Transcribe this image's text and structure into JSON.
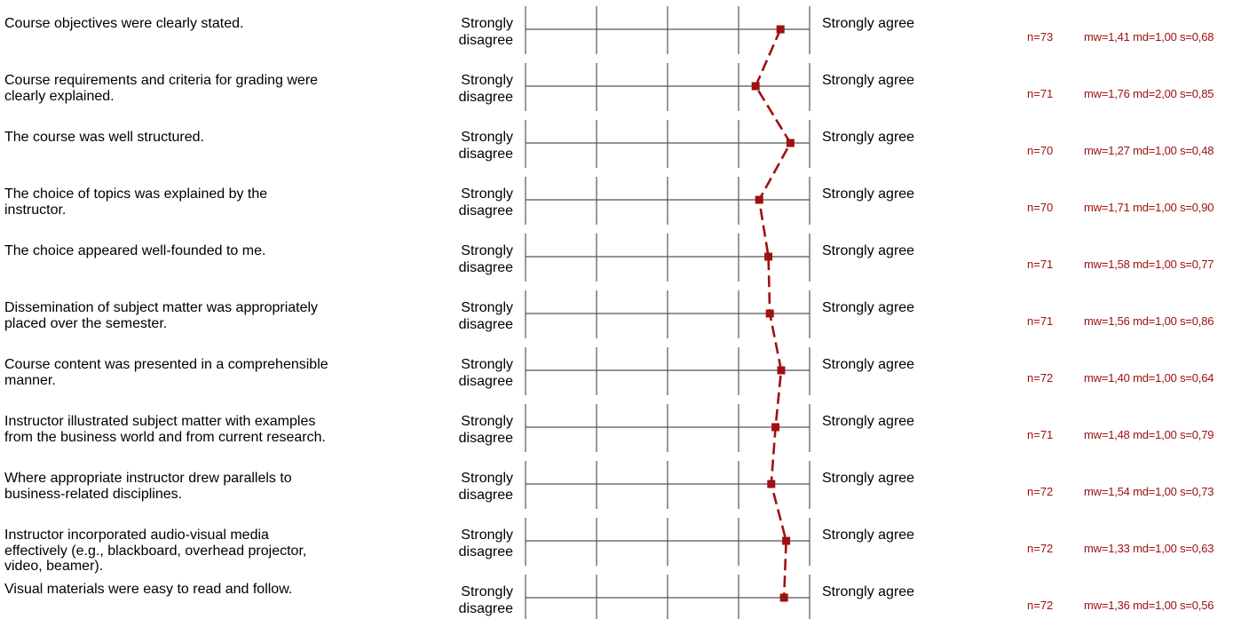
{
  "chart_data": {
    "type": "line",
    "scale_min": 1,
    "scale_max": 5,
    "reversed": true,
    "line_color": "#a01010",
    "grid_color": "#555555",
    "items": [
      {
        "question": "Course objectives were clearly stated.",
        "left_label": "Strongly\ndisagree",
        "right_label": "Strongly agree",
        "n": "n=73",
        "stats": "mw=1,41 md=1,00 s=0,68",
        "mean": 1.41
      },
      {
        "question": "Course requirements and criteria for grading were\nclearly explained.",
        "left_label": "Strongly\ndisagree",
        "right_label": "Strongly agree",
        "n": "n=71",
        "stats": "mw=1,76 md=2,00 s=0,85",
        "mean": 1.76
      },
      {
        "question": "The course was well structured.",
        "left_label": "Strongly\ndisagree",
        "right_label": "Strongly agree",
        "n": "n=70",
        "stats": "mw=1,27 md=1,00 s=0,48",
        "mean": 1.27
      },
      {
        "question": "The choice of topics was explained by the\ninstructor.",
        "left_label": "Strongly\ndisagree",
        "right_label": "Strongly agree",
        "n": "n=70",
        "stats": "mw=1,71 md=1,00 s=0,90",
        "mean": 1.71
      },
      {
        "question": "The choice appeared well-founded to me.",
        "left_label": "Strongly\ndisagree",
        "right_label": "Strongly agree",
        "n": "n=71",
        "stats": "mw=1,58 md=1,00 s=0,77",
        "mean": 1.58
      },
      {
        "question": "Dissemination of subject matter was appropriately\nplaced over the semester.",
        "left_label": "Strongly\ndisagree",
        "right_label": "Strongly agree",
        "n": "n=71",
        "stats": "mw=1,56 md=1,00 s=0,86",
        "mean": 1.56
      },
      {
        "question": "Course content was presented in a comprehensible\nmanner.",
        "left_label": "Strongly\ndisagree",
        "right_label": "Strongly agree",
        "n": "n=72",
        "stats": "mw=1,40 md=1,00 s=0,64",
        "mean": 1.4
      },
      {
        "question": "Instructor illustrated subject matter with examples\nfrom the business world and from current research.",
        "left_label": "Strongly\ndisagree",
        "right_label": "Strongly agree",
        "n": "n=71",
        "stats": "mw=1,48 md=1,00 s=0,79",
        "mean": 1.48
      },
      {
        "question": "Where appropriate instructor drew parallels to\nbusiness-related disciplines.",
        "left_label": "Strongly\ndisagree",
        "right_label": "Strongly agree",
        "n": "n=72",
        "stats": "mw=1,54 md=1,00 s=0,73",
        "mean": 1.54
      },
      {
        "question": "Instructor incorporated audio-visual media\neffectively (e.g., blackboard, overhead projector,\nvideo, beamer).",
        "left_label": "Strongly\ndisagree",
        "right_label": "Strongly agree",
        "n": "n=72",
        "stats": "mw=1,33 md=1,00 s=0,63",
        "mean": 1.33
      },
      {
        "question": "Visual materials were easy to read and follow.",
        "left_label": "Strongly\ndisagree",
        "right_label": "Strongly agree",
        "n": "n=72",
        "stats": "mw=1,36 md=1,00 s=0,56",
        "mean": 1.36
      }
    ]
  }
}
